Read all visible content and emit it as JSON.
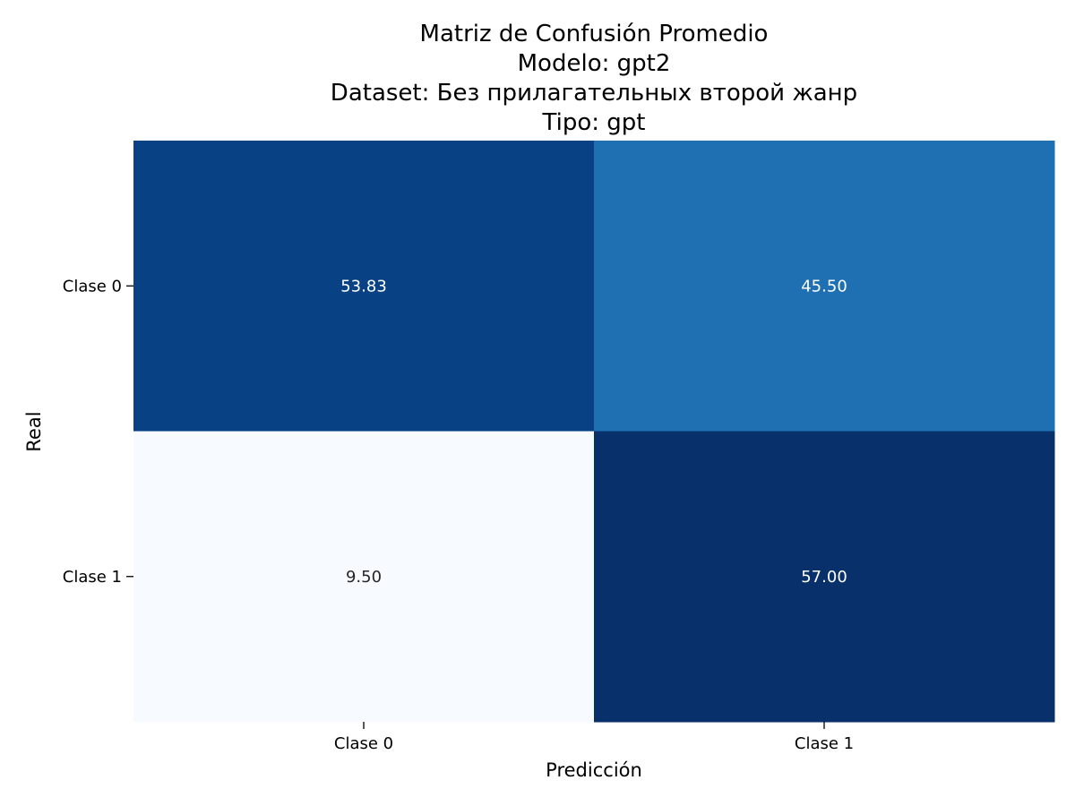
{
  "chart_data": {
    "type": "heatmap",
    "title": [
      "Matriz de Confusión Promedio",
      "Modelo: gpt2",
      "Dataset: Без прилагательных второй жанр",
      "Tipo: gpt"
    ],
    "xlabel": "Predicción",
    "ylabel": "Real",
    "x_categories": [
      "Clase 0",
      "Clase 1"
    ],
    "y_categories": [
      "Clase 0",
      "Clase 1"
    ],
    "values": [
      [
        53.83,
        45.5
      ],
      [
        9.5,
        57.0
      ]
    ],
    "value_labels": [
      [
        "53.83",
        "45.50"
      ],
      [
        "9.50",
        "57.00"
      ]
    ],
    "colormap": "Blues",
    "color_range": [
      9.5,
      57.0
    ],
    "colorbar": false,
    "grid": false
  }
}
